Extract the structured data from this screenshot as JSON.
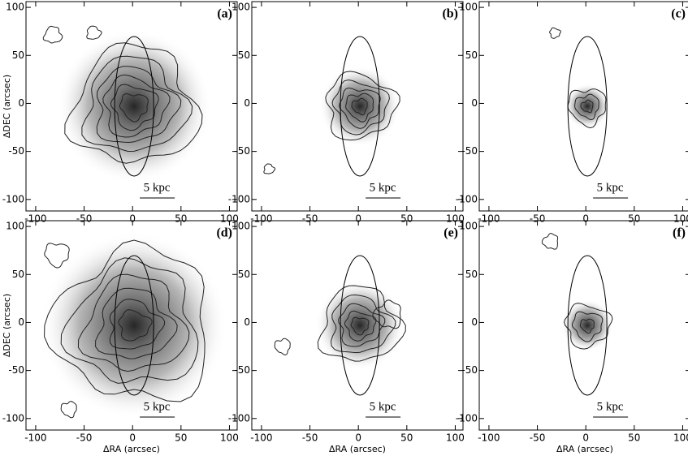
{
  "chart_data": [
    {
      "type": "contour",
      "panel_label": "(a)",
      "scale_label": "5 kpc",
      "ylabel": "ΔDEC (arcsec)",
      "xlim": [
        -110,
        108
      ],
      "ylim": [
        -112,
        106
      ],
      "xticks": [
        -100,
        -50,
        0,
        50,
        100
      ],
      "yticks": [
        -100,
        -50,
        0,
        50,
        100
      ]
    },
    {
      "type": "contour",
      "panel_label": "(b)",
      "scale_label": "5 kpc",
      "xlim": [
        -110,
        108
      ],
      "ylim": [
        -112,
        106
      ],
      "xticks": [
        -100,
        -50,
        0,
        50,
        100
      ],
      "yticks": [
        -100,
        -50,
        0,
        50,
        100
      ]
    },
    {
      "type": "contour",
      "panel_label": "(c)",
      "scale_label": "5 kpc",
      "xlim": [
        -110,
        108
      ],
      "ylim": [
        -112,
        106
      ],
      "xticks": [
        -100,
        -50,
        0,
        50,
        100
      ],
      "yticks": [
        -100,
        -50,
        0,
        50,
        100
      ]
    },
    {
      "type": "contour",
      "panel_label": "(d)",
      "scale_label": "5 kpc",
      "ylabel": "ΔDEC (arcsec)",
      "xlabel": "ΔRA (arcsec)",
      "xlim": [
        -110,
        108
      ],
      "ylim": [
        -112,
        106
      ],
      "xticks": [
        -100,
        -50,
        0,
        50,
        100
      ],
      "yticks": [
        -100,
        -50,
        0,
        50,
        100
      ]
    },
    {
      "type": "contour",
      "panel_label": "(e)",
      "scale_label": "5 kpc",
      "xlabel": "ΔRA (arcsec)",
      "xlim": [
        -110,
        108
      ],
      "ylim": [
        -112,
        106
      ],
      "xticks": [
        -100,
        -50,
        0,
        50,
        100
      ],
      "yticks": [
        -100,
        -50,
        0,
        50,
        100
      ]
    },
    {
      "type": "contour",
      "panel_label": "(f)",
      "scale_label": "5 kpc",
      "xlabel": "ΔRA (arcsec)",
      "xlim": [
        -110,
        108
      ],
      "ylim": [
        -112,
        106
      ],
      "xticks": [
        -100,
        -50,
        0,
        50,
        100
      ],
      "yticks": [
        -100,
        -50,
        0,
        50,
        100
      ]
    }
  ]
}
